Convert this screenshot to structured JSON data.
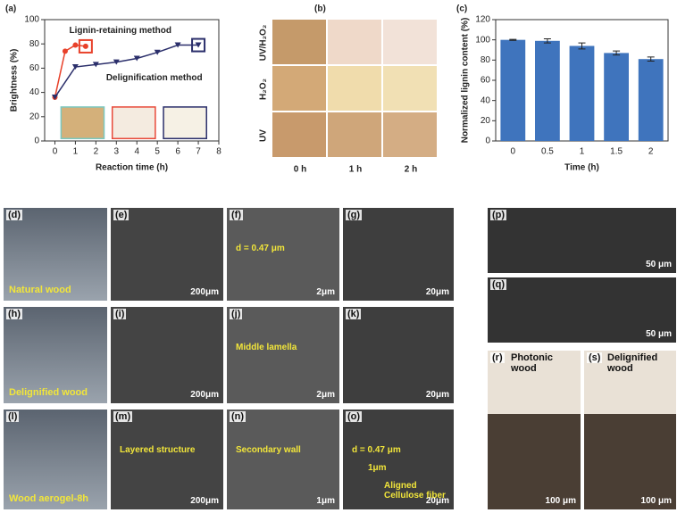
{
  "chart_data": [
    {
      "type": "line",
      "panel": "(a)",
      "xlabel": "Reaction time (h)",
      "ylabel": "Brightness (%)",
      "xlim": [
        -0.5,
        8
      ],
      "xticks": [
        0,
        1,
        2,
        3,
        4,
        5,
        6,
        7,
        8
      ],
      "ylim": [
        0,
        100
      ],
      "yticks": [
        0,
        20,
        40,
        60,
        80,
        100
      ],
      "series": [
        {
          "name": "Lignin-retaining method",
          "color": "#e8412a",
          "x": [
            0,
            0.5,
            1,
            1.5
          ],
          "values": [
            36,
            74,
            79,
            78
          ]
        },
        {
          "name": "Delignification method",
          "color": "#2b2f6b",
          "x": [
            0,
            1,
            2,
            3,
            4,
            5,
            6,
            7
          ],
          "values": [
            36,
            61,
            63,
            65,
            68,
            73,
            79,
            79
          ]
        }
      ]
    },
    {
      "type": "bar",
      "panel": "(c)",
      "xlabel": "Time (h)",
      "ylabel": "Normalized lignin content (%)",
      "categories": [
        "0",
        "0.5",
        "1",
        "1.5",
        "2"
      ],
      "values": [
        100,
        99,
        94,
        87,
        81
      ],
      "errors": [
        0.5,
        2,
        3,
        2,
        2
      ],
      "color": "#3f74bd",
      "ylim": [
        0,
        120
      ],
      "yticks": [
        0,
        20,
        40,
        60,
        80,
        100,
        120
      ]
    }
  ],
  "panel_b": {
    "label": "(b)",
    "rows": [
      "UV/H₂O₂",
      "H₂O₂",
      "UV"
    ],
    "columns": [
      "0 h",
      "1 h",
      "2 h"
    ]
  },
  "photos": [
    {
      "label": "(d)",
      "caption": "Natural wood"
    },
    {
      "label": "(e)",
      "scale": "200μm"
    },
    {
      "label": "(f)",
      "notes": [
        "d = 0.47 μm"
      ],
      "scale": "2μm"
    },
    {
      "label": "(g)",
      "scale": "20μm"
    },
    {
      "label": "(h)",
      "caption": "Delignified wood"
    },
    {
      "label": "(i)",
      "scale": "200μm"
    },
    {
      "label": "(j)",
      "notes": [
        "Middle lamella"
      ],
      "scale": "2μm"
    },
    {
      "label": "(k)",
      "scale": "20μm"
    },
    {
      "label": "(l)",
      "caption": "Wood aerogel-8h"
    },
    {
      "label": "(m)",
      "notes": [
        "Layered structure"
      ],
      "scale": "200μm"
    },
    {
      "label": "(n)",
      "notes": [
        "Secondary wall"
      ],
      "scale": "1μm"
    },
    {
      "label": "(o)",
      "notes": [
        "d = 0.47 μm",
        "1μm",
        "Aligned Cellulose fiber"
      ],
      "scale": "20μm"
    },
    {
      "label": "(p)",
      "scale": "50 μm"
    },
    {
      "label": "(q)",
      "scale": "50 μm"
    },
    {
      "label": "(r)",
      "caption": "Photonic wood",
      "scale": "100 μm"
    },
    {
      "label": "(s)",
      "caption": "Delignified wood",
      "scale": "100 μm"
    }
  ]
}
